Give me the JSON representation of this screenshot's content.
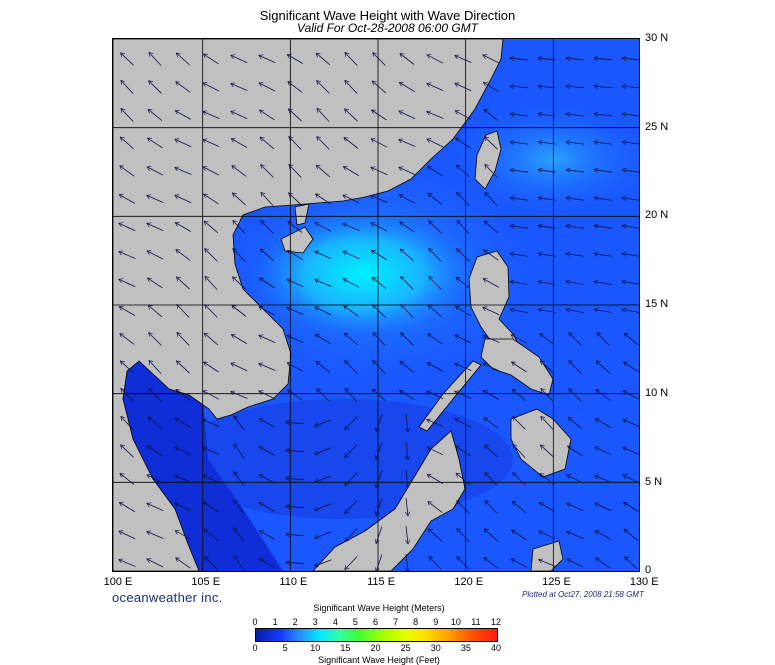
{
  "title": "Significant Wave Height with Wave Direction",
  "subtitle": "Valid For Oct-28-2008 06:00 GMT",
  "lat_labels": [
    "30 N",
    "25 N",
    "20 N",
    "15 N",
    "10 N",
    "5 N",
    "0"
  ],
  "lon_labels": [
    "100 E",
    "105 E",
    "110 E",
    "115 E",
    "120 E",
    "125 E",
    "130 E"
  ],
  "brand": "oceanweather inc.",
  "plotted": "Plotted at Oct27, 2008 21:58 GMT",
  "colorbar": {
    "title_meters": "Significant Wave Height (Meters)",
    "title_feet": "Significant Wave Height (Feet)",
    "meter_ticks": [
      "0",
      "1",
      "2",
      "3",
      "4",
      "5",
      "6",
      "7",
      "8",
      "9",
      "10",
      "11",
      "12"
    ],
    "feet_ticks": [
      "0",
      "5",
      "10",
      "15",
      "20",
      "25",
      "30",
      "35",
      "40"
    ]
  },
  "colors": {
    "land": "#c0c0c0",
    "sea": "#1a57ff",
    "calm": "#0a1ea8",
    "high": "#00e5ff"
  }
}
